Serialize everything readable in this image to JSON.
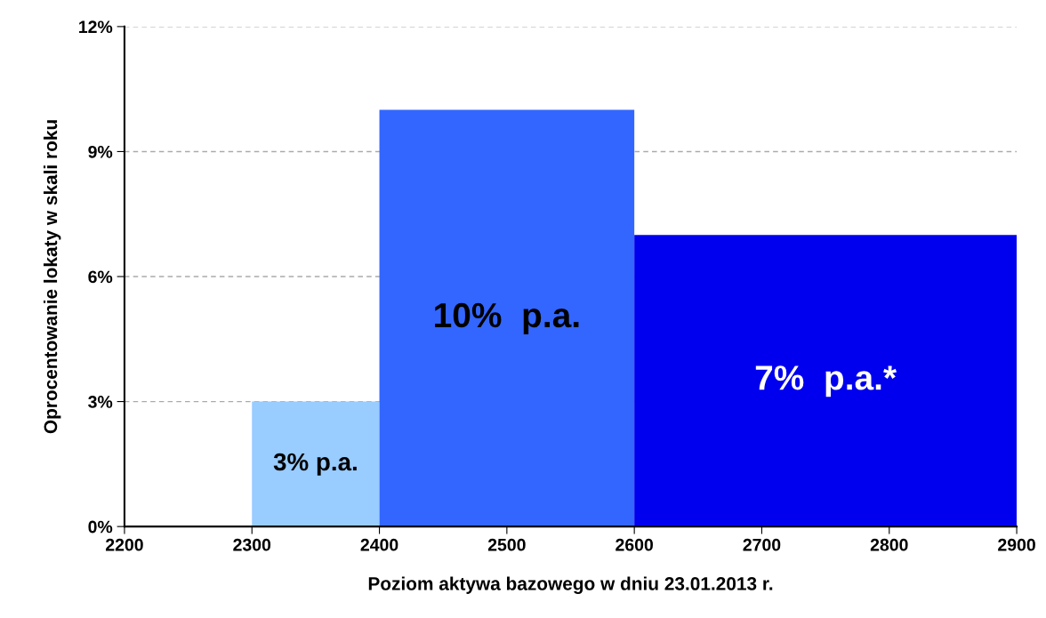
{
  "chart_data": {
    "type": "histogram",
    "xlabel": "Poziom aktywa bazowego w dniu 23.01.2013 r.",
    "ylabel": "Oprocentowanie lokaty w skali roku",
    "bins": [
      2300,
      2400,
      2600,
      2900
    ],
    "values": [
      3,
      10,
      7
    ],
    "colors": [
      "#99ccff",
      "#3366ff",
      "#0000ee"
    ],
    "value_labels": [
      "3% p.a.",
      "10%  p.a.",
      "7%  p.a.*"
    ],
    "xlim": [
      2200,
      2900
    ],
    "xticks": [
      2200,
      2300,
      2400,
      2500,
      2600,
      2700,
      2800,
      2900
    ],
    "ylim": [
      0,
      12
    ],
    "yticks": [
      {
        "value": 0,
        "label": "0%"
      },
      {
        "value": 3,
        "label": "3%"
      },
      {
        "value": 6,
        "label": "6%"
      },
      {
        "value": 9,
        "label": "9%"
      },
      {
        "value": 12,
        "label": "12%"
      }
    ],
    "grid": "y"
  }
}
